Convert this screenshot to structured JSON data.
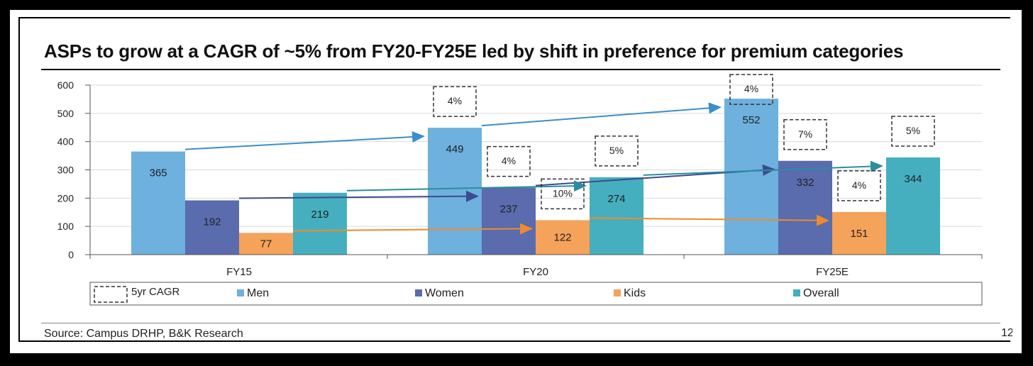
{
  "title": "ASPs to grow at a CAGR of ~5% from FY20-FY25E led by shift in preference for premium categories",
  "source": "Source: Campus DRHP, B&K Research",
  "page_number": "12",
  "chart_data": {
    "type": "bar",
    "categories": [
      "FY15",
      "FY20",
      "FY25E"
    ],
    "series": [
      {
        "name": "Men",
        "values": [
          365,
          449,
          552
        ],
        "color": "#6EB0DE",
        "cagr": [
          null,
          "4%",
          "4%"
        ],
        "arrow_color": "#3A8FCB"
      },
      {
        "name": "Women",
        "values": [
          192,
          237,
          332
        ],
        "color": "#5A6BAE",
        "cagr": [
          null,
          "4%",
          "7%"
        ],
        "arrow_color": "#3E4A8F"
      },
      {
        "name": "Kids",
        "values": [
          77,
          122,
          151
        ],
        "color": "#F5A25A",
        "cagr": [
          null,
          "10%",
          "4%"
        ],
        "arrow_color": "#F08A2C"
      },
      {
        "name": "Overall",
        "values": [
          219,
          274,
          344
        ],
        "color": "#45AFBF",
        "cagr": [
          null,
          "5%",
          "5%"
        ],
        "arrow_color": "#2A8E9E"
      }
    ],
    "legend_cagr_label": "5yr CAGR",
    "yticks": [
      0,
      100,
      200,
      300,
      400,
      500,
      600
    ],
    "ylim": [
      0,
      600
    ],
    "grid": true,
    "legend": "bottom"
  }
}
